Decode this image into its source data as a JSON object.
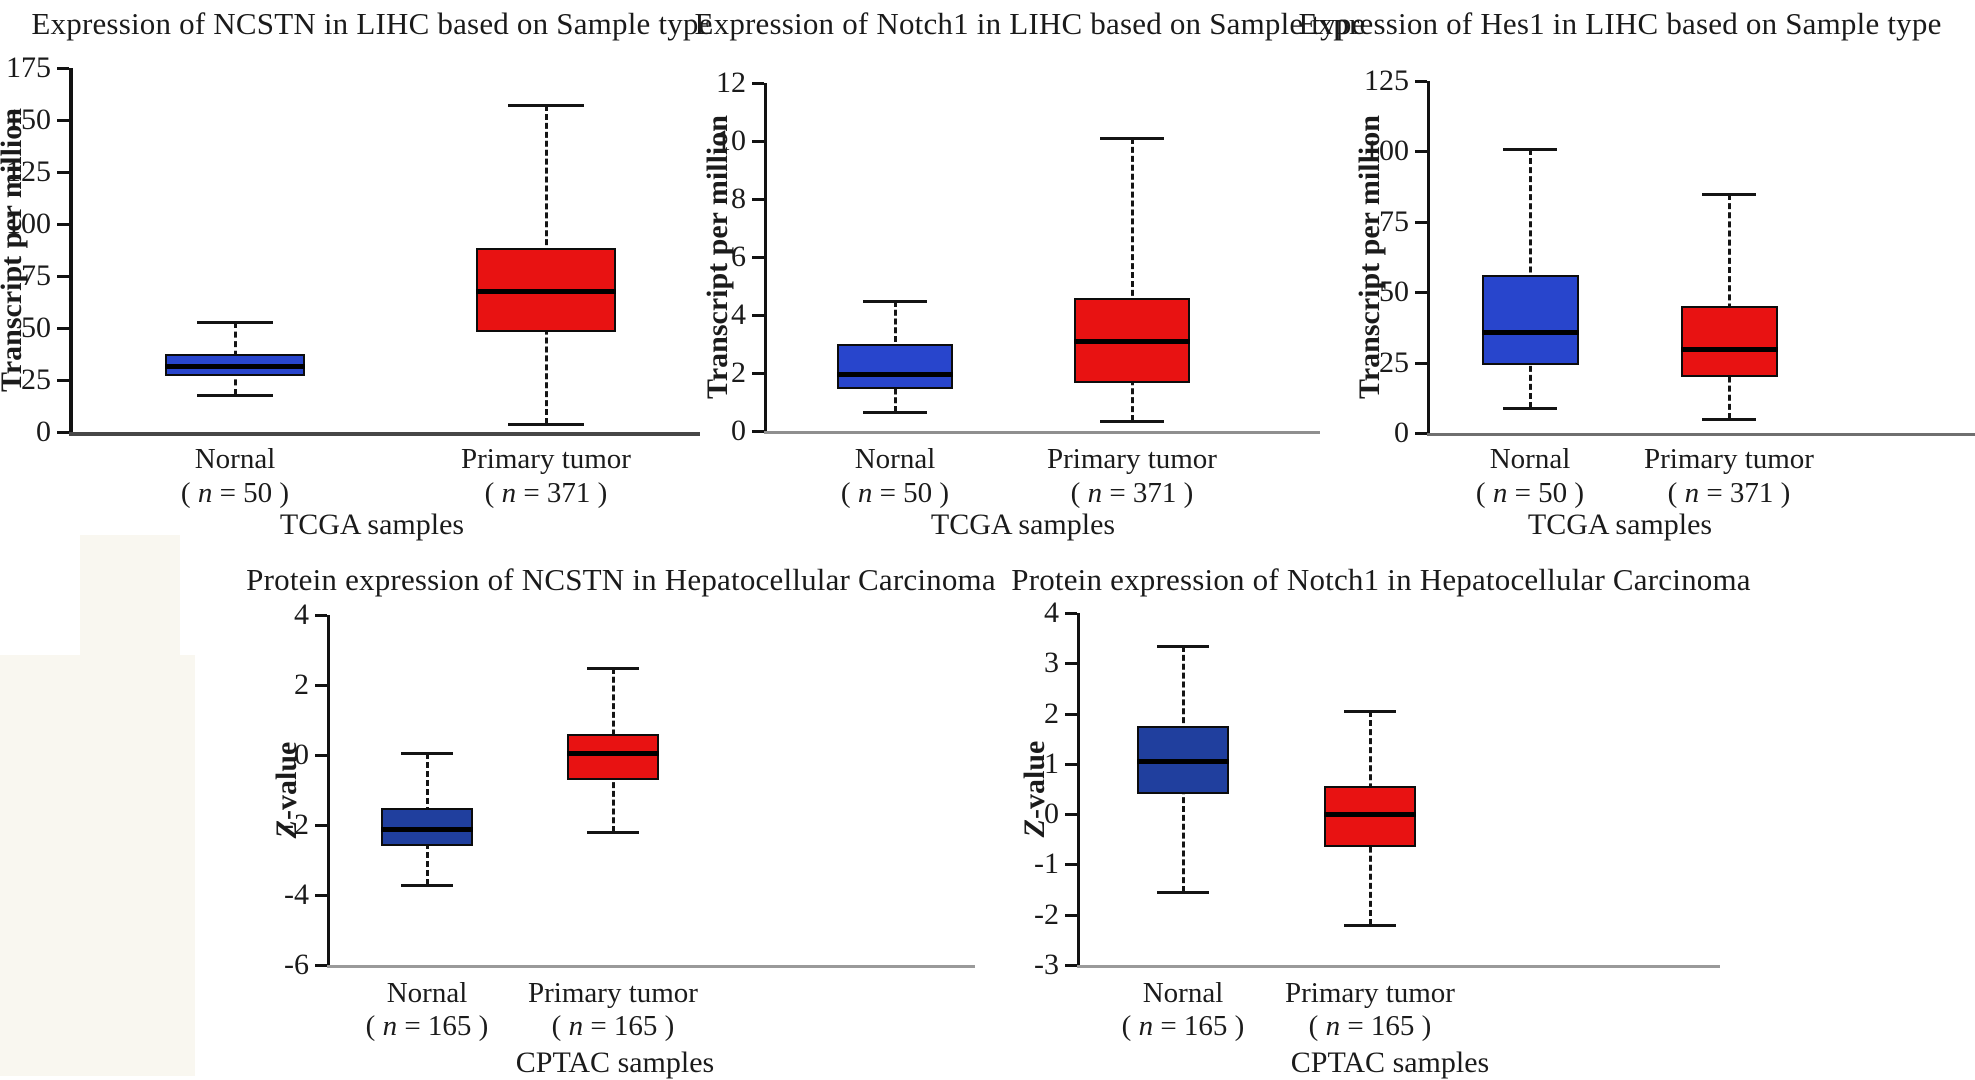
{
  "colors": {
    "normal_box_top_row": "#2845cc",
    "normal_box_bottom_row": "#203f9e",
    "tumor_box": "#e81212",
    "median_line": "#000000",
    "axis_line": "#121212"
  },
  "chart_data": [
    {
      "type": "box",
      "title": "Expression of NCSTN in LIHC based on Sample type",
      "ylabel": "Transcript per million",
      "xlabel": "TCGA samples",
      "ylim": [
        0,
        175
      ],
      "yticks": [
        0,
        25,
        50,
        75,
        100,
        125,
        150,
        175
      ],
      "categories": [
        "Nornal",
        "Primary tumor"
      ],
      "category_counts": [
        "( n = 50 )",
        "( n = 371 )"
      ],
      "series": [
        {
          "name": "Nornal",
          "n": 50,
          "color": "#2845cc",
          "whisker_low": 18,
          "q1": 27,
          "median": 31.5,
          "q3": 37.5,
          "whisker_high": 53
        },
        {
          "name": "Primary tumor",
          "n": 371,
          "color": "#e81212",
          "whisker_low": 4,
          "q1": 48,
          "median": 68,
          "q3": 88.5,
          "whisker_high": 157
        }
      ]
    },
    {
      "type": "box",
      "title": "Expression of Notch1 in LIHC based on Sample type",
      "ylabel": "Transcript per million",
      "xlabel": "TCGA samples",
      "ylim": [
        0,
        12
      ],
      "yticks": [
        0,
        2,
        4,
        6,
        8,
        10,
        12
      ],
      "categories": [
        "Nornal",
        "Primary tumor"
      ],
      "category_counts": [
        "( n = 50 )",
        "( n = 371 )"
      ],
      "series": [
        {
          "name": "Nornal",
          "n": 50,
          "color": "#2845cc",
          "whisker_low": 0.65,
          "q1": 1.45,
          "median": 1.95,
          "q3": 3.0,
          "whisker_high": 4.5
        },
        {
          "name": "Primary tumor",
          "n": 371,
          "color": "#e81212",
          "whisker_low": 0.35,
          "q1": 1.65,
          "median": 3.1,
          "q3": 4.6,
          "whisker_high": 10.1
        }
      ]
    },
    {
      "type": "box",
      "title": "Expression of Hes1 in LIHC based on Sample type",
      "ylabel": "Transcript per million",
      "xlabel": "TCGA samples",
      "ylim": [
        0,
        125
      ],
      "yticks": [
        0,
        25,
        50,
        75,
        100,
        125
      ],
      "categories": [
        "Nornal",
        "Primary tumor"
      ],
      "category_counts": [
        "( n = 50 )",
        "( n = 371 )"
      ],
      "series": [
        {
          "name": "Nornal",
          "n": 50,
          "color": "#2845cc",
          "whisker_low": 9,
          "q1": 24,
          "median": 36,
          "q3": 56,
          "whisker_high": 101
        },
        {
          "name": "Primary tumor",
          "n": 371,
          "color": "#e81212",
          "whisker_low": 5,
          "q1": 20,
          "median": 30,
          "q3": 45,
          "whisker_high": 85
        }
      ]
    },
    {
      "type": "box",
      "title": "Protein expression of NCSTN in Hepatocellular Carcinoma",
      "ylabel": "Z-value",
      "xlabel": "CPTAC samples",
      "ylim": [
        -6,
        4
      ],
      "yticks": [
        4,
        2,
        0,
        -2,
        -4,
        -6
      ],
      "categories": [
        "Nornal",
        "Primary tumor"
      ],
      "category_counts": [
        "( n = 165 )",
        "( n = 165 )"
      ],
      "series": [
        {
          "name": "Nornal",
          "n": 165,
          "color": "#203f9e",
          "whisker_low": -3.7,
          "q1": -2.6,
          "median": -2.1,
          "q3": -1.5,
          "whisker_high": 0.05
        },
        {
          "name": "Primary tumor",
          "n": 165,
          "color": "#e81212",
          "whisker_low": -2.2,
          "q1": -0.7,
          "median": 0.05,
          "q3": 0.6,
          "whisker_high": 2.5
        }
      ]
    },
    {
      "type": "box",
      "title": "Protein expression of Notch1 in Hepatocellular Carcinoma",
      "ylabel": "Z-value",
      "xlabel": "CPTAC samples",
      "ylim": [
        -3,
        4
      ],
      "yticks": [
        4,
        3,
        2,
        1,
        0,
        -1,
        -2,
        -3
      ],
      "categories": [
        "Nornal",
        "Primary tumor"
      ],
      "category_counts": [
        "( n = 165 )",
        "( n = 165 )"
      ],
      "series": [
        {
          "name": "Nornal",
          "n": 165,
          "color": "#203f9e",
          "whisker_low": -1.55,
          "q1": 0.4,
          "median": 1.05,
          "q3": 1.75,
          "whisker_high": 3.35
        },
        {
          "name": "Primary tumor",
          "n": 165,
          "color": "#e81212",
          "whisker_low": -2.2,
          "q1": -0.65,
          "median": 0.0,
          "q3": 0.55,
          "whisker_high": 2.05
        }
      ]
    }
  ]
}
